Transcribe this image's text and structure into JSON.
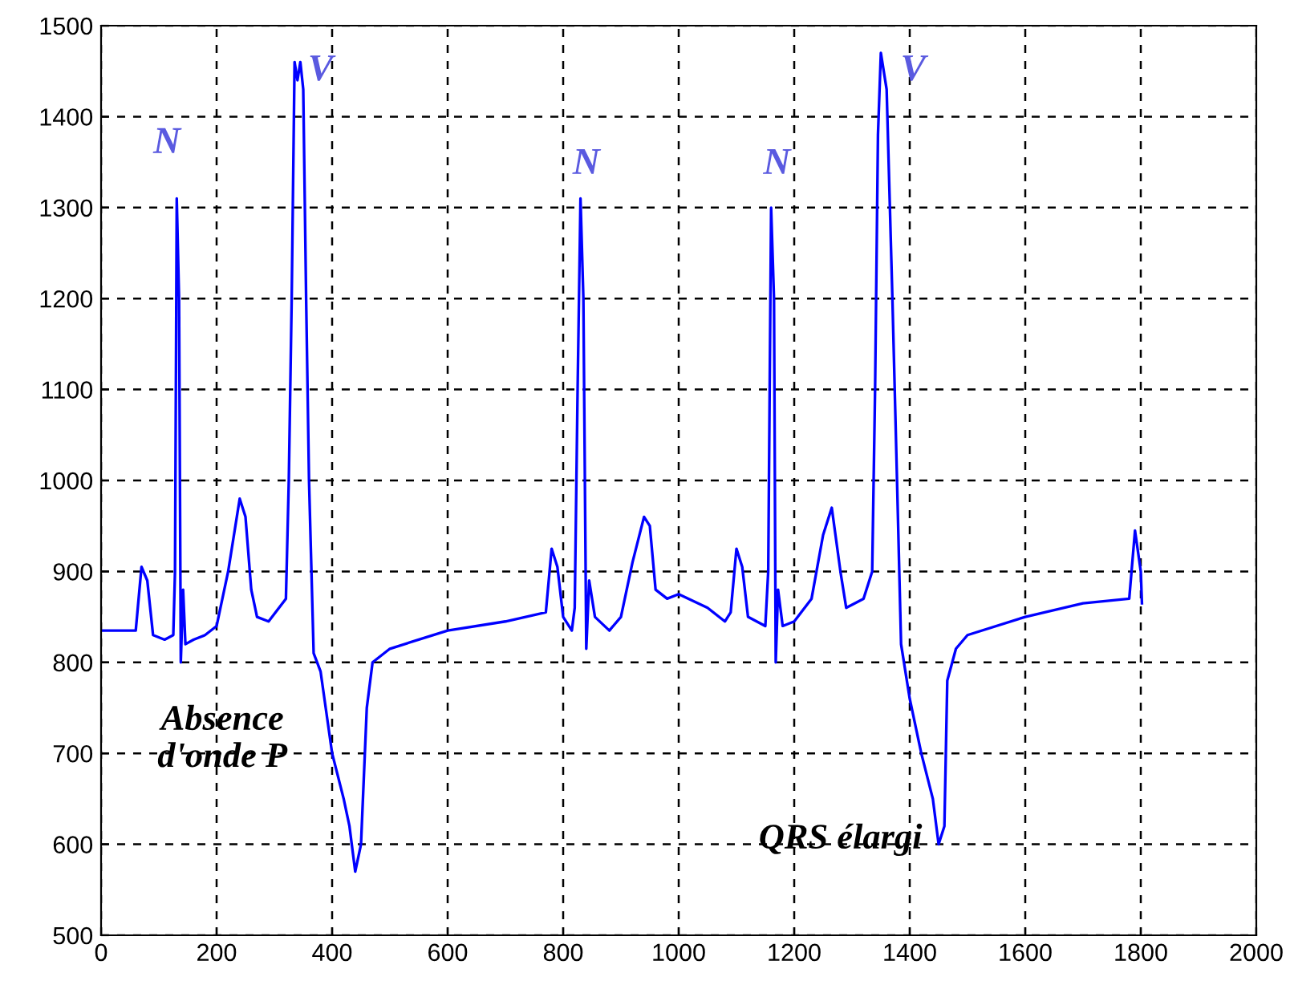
{
  "chart_data": {
    "type": "line",
    "color": "#0000ff",
    "xlim": [
      0,
      2000
    ],
    "ylim": [
      500,
      1500
    ],
    "xticks": [
      0,
      200,
      400,
      600,
      800,
      1000,
      1200,
      1400,
      1600,
      1800,
      2000
    ],
    "yticks": [
      500,
      600,
      700,
      800,
      900,
      1000,
      1100,
      1200,
      1300,
      1400,
      1500
    ],
    "grid": true,
    "line_style": "solid",
    "marker": "none",
    "x": [
      0,
      60,
      70,
      80,
      90,
      110,
      125,
      128,
      131,
      135,
      138,
      142,
      146,
      160,
      180,
      200,
      220,
      240,
      250,
      260,
      270,
      290,
      320,
      325,
      330,
      335,
      340,
      345,
      350,
      355,
      360,
      368,
      380,
      400,
      420,
      430,
      440,
      450,
      460,
      470,
      500,
      600,
      700,
      770,
      780,
      790,
      800,
      815,
      820,
      825,
      830,
      835,
      840,
      845,
      855,
      880,
      900,
      920,
      940,
      950,
      960,
      980,
      1000,
      1050,
      1080,
      1090,
      1100,
      1110,
      1120,
      1150,
      1155,
      1160,
      1165,
      1168,
      1172,
      1180,
      1200,
      1230,
      1250,
      1265,
      1280,
      1290,
      1320,
      1335,
      1340,
      1345,
      1350,
      1360,
      1370,
      1378,
      1385,
      1400,
      1420,
      1440,
      1450,
      1460,
      1465,
      1480,
      1500,
      1600,
      1700,
      1780,
      1790,
      1800,
      1802
    ],
    "values": [
      835,
      835,
      905,
      890,
      830,
      825,
      830,
      900,
      1310,
      1200,
      800,
      880,
      820,
      825,
      830,
      840,
      900,
      980,
      960,
      880,
      850,
      845,
      870,
      1000,
      1200,
      1460,
      1440,
      1460,
      1430,
      1200,
      1000,
      810,
      790,
      700,
      650,
      620,
      570,
      600,
      750,
      800,
      815,
      835,
      845,
      855,
      925,
      905,
      850,
      835,
      860,
      1100,
      1310,
      1200,
      815,
      890,
      850,
      835,
      850,
      910,
      960,
      950,
      880,
      870,
      875,
      860,
      845,
      855,
      925,
      905,
      850,
      840,
      900,
      1300,
      1200,
      800,
      880,
      840,
      845,
      870,
      940,
      970,
      900,
      860,
      870,
      900,
      1100,
      1380,
      1470,
      1430,
      1200,
      1000,
      820,
      760,
      700,
      650,
      600,
      620,
      780,
      815,
      830,
      850,
      865,
      870,
      945,
      900,
      865
    ],
    "annotations": [
      "N",
      "V",
      "N",
      "N",
      "V",
      "Absence\nd'onde P",
      "QRS élargi"
    ]
  }
}
